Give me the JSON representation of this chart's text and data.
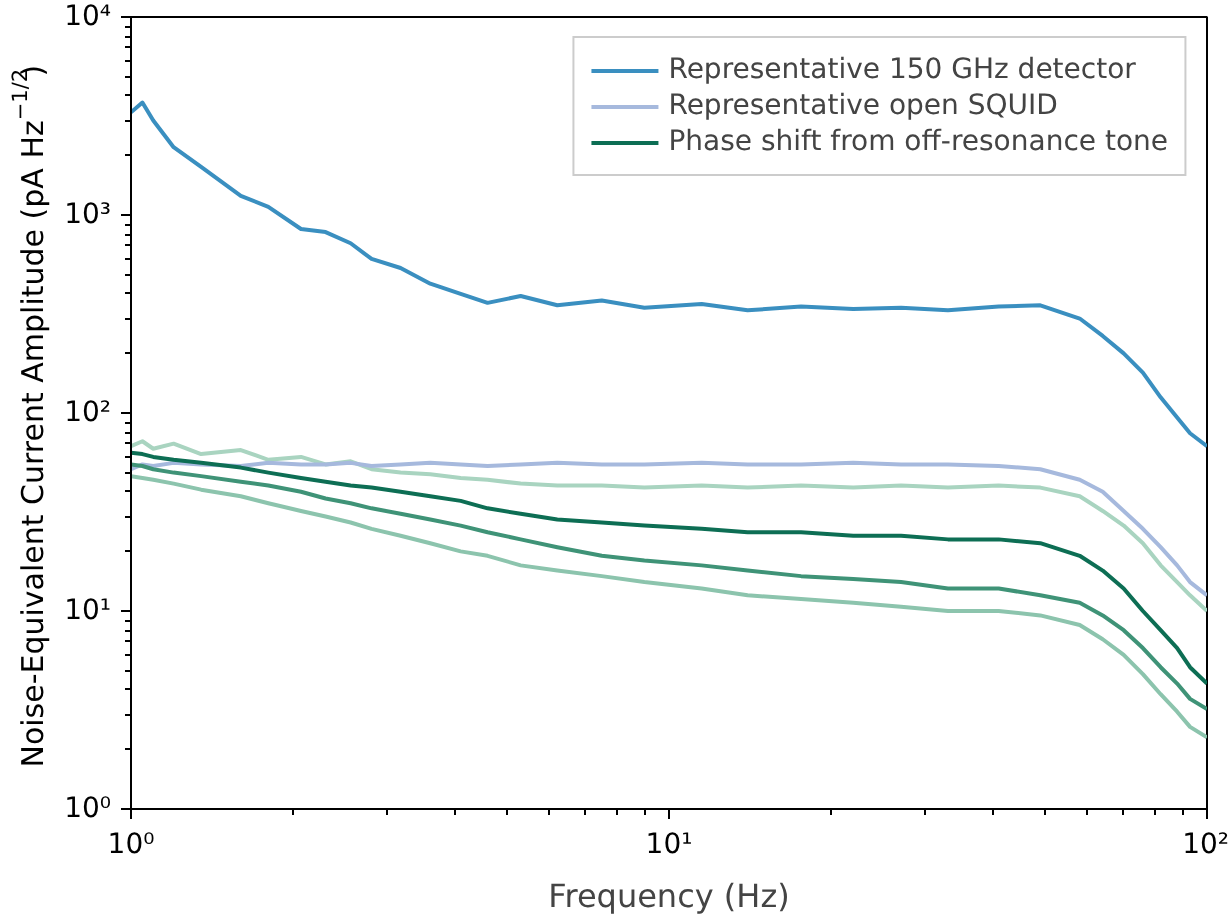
{
  "chart_data": {
    "type": "line",
    "xlabel": "Frequency (Hz)",
    "ylabel": "Noise-Equivalent Current Amplitude (pA Hz$^{−1/2}$)",
    "log": "xy",
    "grid": false,
    "legend": "top right",
    "line_style": "solid",
    "marker": "none",
    "xlim": [
      1,
      100
    ],
    "ylim": [
      1,
      10000
    ],
    "xticks": [
      {
        "value": 1,
        "label": "10⁰"
      },
      {
        "value": 10,
        "label": "10¹"
      },
      {
        "value": 100,
        "label": "10²"
      }
    ],
    "yticks": [
      {
        "value": 1,
        "label": "10⁰"
      },
      {
        "value": 10,
        "label": "10¹"
      },
      {
        "value": 100,
        "label": "10²"
      },
      {
        "value": 1000,
        "label": "10³"
      },
      {
        "value": 10000,
        "label": "10⁴"
      }
    ],
    "x": [
      1,
      1.05,
      1.1,
      1.2,
      1.35,
      1.6,
      1.8,
      2.07,
      2.3,
      2.56,
      2.8,
      3.17,
      3.6,
      4.1,
      4.6,
      5.3,
      6.2,
      7.5,
      9,
      11.5,
      14,
      17.6,
      22,
      27,
      33,
      41,
      49,
      58,
      64,
      70,
      76,
      82,
      88,
      93,
      100
    ],
    "series": [
      {
        "name": "Representative 150 GHz detector",
        "color": "#3a8fc0",
        "values": [
          3300,
          3700,
          3000,
          2200,
          1750,
          1250,
          1100,
          850,
          820,
          720,
          600,
          540,
          450,
          400,
          360,
          390,
          350,
          370,
          340,
          355,
          330,
          345,
          335,
          340,
          330,
          345,
          350,
          300,
          245,
          200,
          160,
          120,
          95,
          79,
          68
        ]
      },
      {
        "color": "#a9d4c0",
        "values": [
          68,
          72,
          66,
          70,
          62,
          65,
          58,
          60,
          55,
          57,
          52,
          50,
          49,
          47,
          46,
          44,
          43,
          43,
          42,
          43,
          42,
          43,
          42,
          43,
          42,
          43,
          42,
          38,
          32,
          27,
          22,
          17,
          14,
          12,
          10
        ]
      },
      {
        "name": "Representative open SQUID",
        "color": "#a6b9dd",
        "values": [
          52,
          55,
          54,
          56,
          55,
          54,
          56,
          55,
          55,
          56,
          54,
          55,
          56,
          55,
          54,
          55,
          56,
          55,
          55,
          56,
          55,
          55,
          56,
          55,
          55,
          54,
          52,
          46,
          40,
          32,
          26,
          21,
          17,
          14,
          12
        ]
      },
      {
        "name": "Phase shift from off-resonance tone",
        "color": "#0d6e54",
        "values": [
          63,
          62,
          60,
          58,
          56,
          53,
          50,
          47,
          45,
          43,
          42,
          40,
          38,
          36,
          33,
          31,
          29,
          28,
          27,
          26,
          25,
          25,
          24,
          24,
          23,
          23,
          22,
          19,
          16,
          13,
          10,
          8,
          6.5,
          5.2,
          4.3
        ]
      },
      {
        "color": "#3f9377",
        "values": [
          55,
          54,
          52,
          50,
          48,
          45,
          43,
          40,
          37,
          35,
          33,
          31,
          29,
          27,
          25,
          23,
          21,
          19,
          18,
          17,
          16,
          15,
          14.5,
          14,
          13,
          13,
          12,
          11,
          9.5,
          8,
          6.5,
          5.2,
          4.3,
          3.6,
          3.2
        ]
      },
      {
        "color": "#8cc4ad",
        "values": [
          48,
          47,
          46,
          44,
          41,
          38,
          35,
          32,
          30,
          28,
          26,
          24,
          22,
          20,
          19,
          17,
          16,
          15,
          14,
          13,
          12,
          11.5,
          11,
          10.5,
          10,
          10,
          9.5,
          8.5,
          7.2,
          6,
          4.8,
          3.8,
          3.1,
          2.6,
          2.3
        ]
      }
    ]
  }
}
